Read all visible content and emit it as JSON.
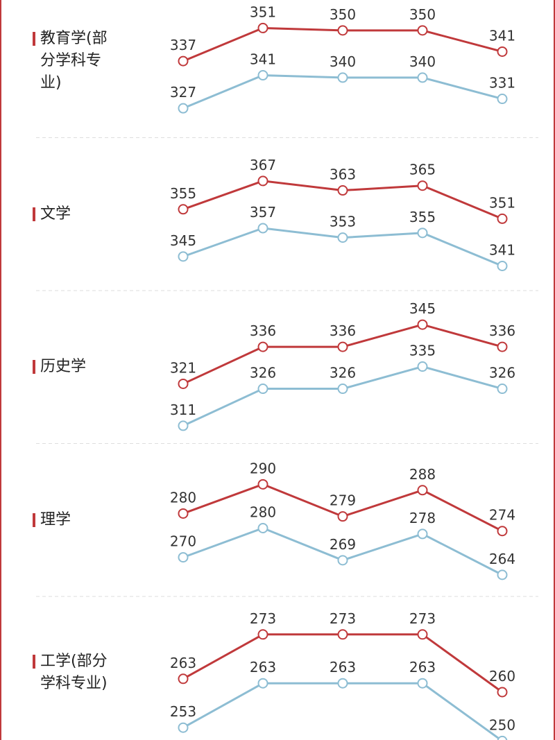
{
  "chart_data": [
    {
      "type": "line",
      "title": "教育学(部分学科专业)",
      "categories": [
        null,
        null,
        null,
        null,
        null
      ],
      "series": [
        {
          "color": "#c0393b",
          "values": [
            337,
            351,
            350,
            350,
            341
          ]
        },
        {
          "color": "#8dbdd3",
          "values": [
            327,
            341,
            340,
            340,
            331
          ],
          "axis": "y2"
        }
      ],
      "ylim": [
        310,
        357
      ],
      "y2lim": [
        320,
        367
      ]
    },
    {
      "type": "line",
      "title": "文学",
      "categories": [
        null,
        null,
        null,
        null,
        null
      ],
      "series": [
        {
          "color": "#c0393b",
          "values": [
            355,
            367,
            363,
            365,
            351
          ]
        },
        {
          "color": "#8dbdd3",
          "values": [
            345,
            357,
            353,
            355,
            341
          ],
          "axis": "y2"
        }
      ],
      "ylim": [
        326,
        373
      ],
      "y2lim": [
        336,
        383
      ]
    },
    {
      "type": "line",
      "title": "历史学",
      "categories": [
        null,
        null,
        null,
        null,
        null
      ],
      "series": [
        {
          "color": "#c0393b",
          "values": [
            321,
            336,
            336,
            345,
            336
          ]
        },
        {
          "color": "#8dbdd3",
          "values": [
            311,
            326,
            326,
            335,
            326
          ],
          "axis": "y2"
        }
      ],
      "ylim": [
        302,
        347
      ],
      "y2lim": [
        309,
        354
      ]
    },
    {
      "type": "line",
      "title": "理学",
      "categories": [
        null,
        null,
        null,
        null,
        null
      ],
      "series": [
        {
          "color": "#c0393b",
          "values": [
            280,
            290,
            279,
            288,
            274
          ]
        },
        {
          "color": "#8dbdd3",
          "values": [
            270,
            280,
            269,
            278,
            264
          ],
          "axis": "y2"
        }
      ],
      "ylim": [
        256,
        294
      ],
      "y2lim": [
        261,
        299
      ]
    },
    {
      "type": "line",
      "title": "工学(部分学科专业)",
      "categories": [
        null,
        null,
        null,
        null,
        null
      ],
      "series": [
        {
          "color": "#c0393b",
          "values": [
            263,
            273,
            273,
            273,
            260
          ]
        },
        {
          "color": "#8dbdd3",
          "values": [
            253,
            263,
            263,
            263,
            250
          ],
          "axis": "y2"
        }
      ],
      "ylim": [
        250,
        275
      ],
      "y2lim": [
        251,
        276
      ]
    }
  ]
}
